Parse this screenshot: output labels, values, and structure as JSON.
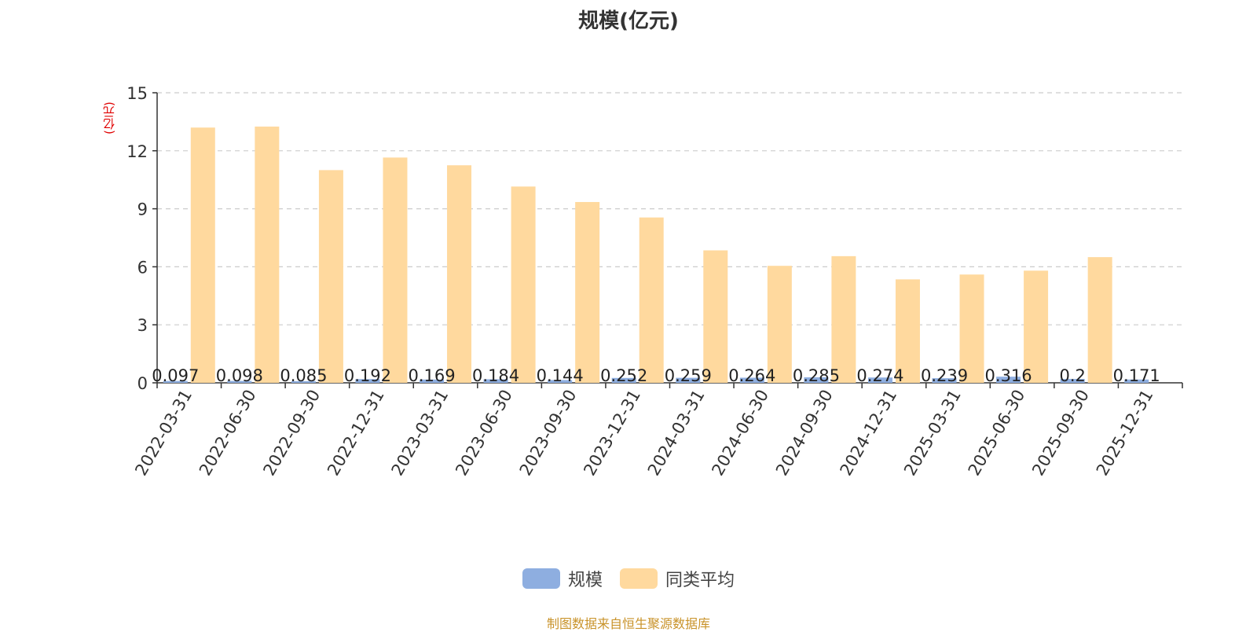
{
  "chart_data": {
    "type": "bar",
    "title": "规模(亿元)",
    "ylabel": "(亿元)",
    "xlabel": "",
    "ylim": [
      0,
      15
    ],
    "yticks": [
      0,
      3,
      6,
      9,
      12,
      15
    ],
    "grid": true,
    "legend_position": "bottom-center",
    "categories": [
      "2022-03-31",
      "2022-06-30",
      "2022-09-30",
      "2022-12-31",
      "2023-03-31",
      "2023-06-30",
      "2023-09-30",
      "2023-12-31",
      "2024-03-31",
      "2024-06-30",
      "2024-09-30",
      "2024-12-31",
      "2025-03-31",
      "2025-06-30",
      "2025-09-30",
      "2025-12-31"
    ],
    "series": [
      {
        "name": "规模",
        "color": "#8eaee0",
        "values": [
          0.097,
          0.098,
          0.085,
          0.192,
          0.169,
          0.184,
          0.144,
          0.252,
          0.259,
          0.264,
          0.285,
          0.274,
          0.239,
          0.316,
          0.2,
          0.171
        ],
        "data_labels": [
          "0.097",
          "0.098",
          "0.085",
          "0.192",
          "0.169",
          "0.184",
          "0.144",
          "0.252",
          "0.259",
          "0.264",
          "0.285",
          "0.274",
          "0.239",
          "0.316",
          "0.2",
          "0.171"
        ]
      },
      {
        "name": "同类平均",
        "color": "#ffd99e",
        "values": [
          13.2,
          13.25,
          11.0,
          11.65,
          11.25,
          10.15,
          9.35,
          8.55,
          6.85,
          6.05,
          6.55,
          5.35,
          5.6,
          5.8,
          6.5,
          0
        ]
      }
    ]
  },
  "legend": {
    "items": [
      {
        "label": "规模",
        "color": "#8eaee0"
      },
      {
        "label": "同类平均",
        "color": "#ffd99e"
      }
    ]
  },
  "source_note": "制图数据来自恒生聚源数据库"
}
